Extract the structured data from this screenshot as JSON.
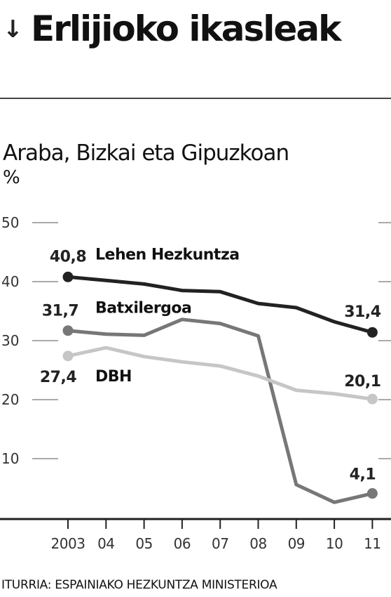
{
  "title_arrow": "↓",
  "title": "Erlijioko ikasleak",
  "subtitle": "Araba, Bizkai eta Gipuzkoan",
  "unit": "%",
  "source": "ITURRIA: ESPAINIAKO HEZKUNTZA MINISTERIOA",
  "chart_data": {
    "type": "line",
    "x": [
      "2003",
      "04",
      "05",
      "06",
      "07",
      "08",
      "09",
      "10",
      "11"
    ],
    "ylim": [
      0,
      50
    ],
    "yticks": [
      10,
      20,
      30,
      40,
      50
    ],
    "grid": true,
    "series": [
      {
        "name": "Lehen Hezkuntza",
        "color": "#222222",
        "values": [
          40.8,
          40.2,
          39.6,
          38.5,
          38.3,
          36.3,
          35.6,
          33.2,
          31.4
        ],
        "start_label": "40,8",
        "end_label": "31,4"
      },
      {
        "name": "Batxilergoa",
        "color": "#777777",
        "values": [
          31.7,
          31.1,
          30.9,
          33.6,
          32.9,
          30.8,
          5.6,
          2.6,
          4.1
        ],
        "start_label": "31,7",
        "end_label": "4,1"
      },
      {
        "name": "DBH",
        "color": "#c6c6c6",
        "values": [
          27.4,
          28.8,
          27.3,
          26.4,
          25.7,
          24.0,
          21.6,
          21.0,
          20.1
        ],
        "start_label": "27,4",
        "end_label": "20,1"
      }
    ]
  }
}
